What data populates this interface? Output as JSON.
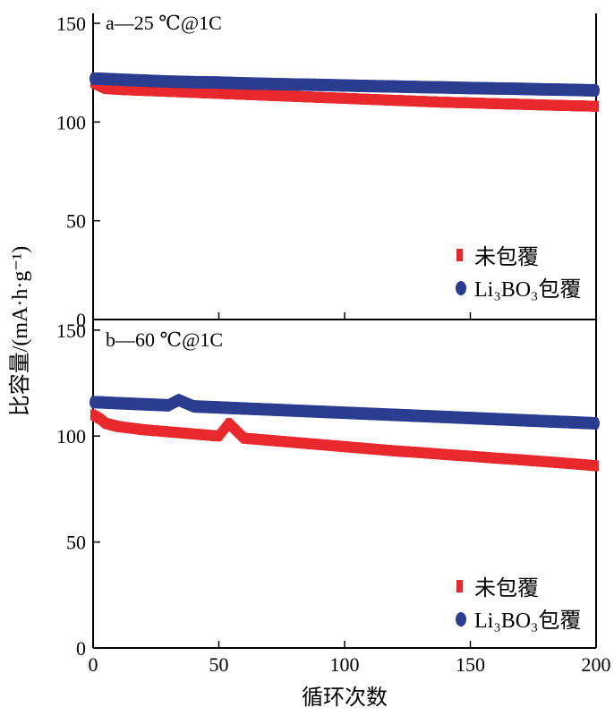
{
  "chart_data": {
    "type": "scatter",
    "xlabel": "循环次数",
    "ylabel": "比容量/(mA·h·g⁻¹)",
    "xlim": [
      0,
      200
    ],
    "ylim": [
      0,
      155
    ],
    "x_ticks": [
      "0",
      "50",
      "100",
      "150",
      "200"
    ],
    "y_ticks": [
      "0",
      "50",
      "100",
      "150"
    ],
    "panels": [
      {
        "label": "a—25 ℃@1C",
        "legend_position": "bottom-right",
        "series": [
          {
            "name": "未包覆",
            "marker": "square",
            "color": "#e8292c",
            "points": [
              [
                0,
                120
              ],
              [
                5,
                117
              ],
              [
                10,
                116.5
              ],
              [
                20,
                116
              ],
              [
                30,
                115.5
              ],
              [
                40,
                115
              ],
              [
                50,
                114.5
              ],
              [
                60,
                114
              ],
              [
                70,
                113.5
              ],
              [
                80,
                113
              ],
              [
                90,
                112.5
              ],
              [
                100,
                112
              ],
              [
                110,
                111.5
              ],
              [
                120,
                111
              ],
              [
                130,
                110.5
              ],
              [
                140,
                110
              ],
              [
                150,
                109.7
              ],
              [
                160,
                109.3
              ],
              [
                170,
                109
              ],
              [
                180,
                108.6
              ],
              [
                190,
                108.3
              ],
              [
                200,
                108
              ]
            ]
          },
          {
            "name": "Li₃BO₃包覆",
            "marker": "circle",
            "color": "#2b3d8f",
            "points": [
              [
                0,
                122
              ],
              [
                5,
                121.8
              ],
              [
                10,
                121.5
              ],
              [
                20,
                121
              ],
              [
                30,
                120.5
              ],
              [
                40,
                120.2
              ],
              [
                50,
                120
              ],
              [
                60,
                119.6
              ],
              [
                70,
                119.3
              ],
              [
                80,
                119
              ],
              [
                90,
                118.8
              ],
              [
                100,
                118.5
              ],
              [
                110,
                118.2
              ],
              [
                120,
                118
              ],
              [
                130,
                117.7
              ],
              [
                140,
                117.5
              ],
              [
                150,
                117.2
              ],
              [
                160,
                117
              ],
              [
                170,
                116.8
              ],
              [
                180,
                116.5
              ],
              [
                190,
                116.3
              ],
              [
                200,
                116
              ]
            ]
          }
        ]
      },
      {
        "label": "b—60 ℃@1C",
        "legend_position": "bottom-right",
        "series": [
          {
            "name": "未包覆",
            "marker": "square",
            "color": "#e8292c",
            "points": [
              [
                0,
                110
              ],
              [
                3,
                108
              ],
              [
                5,
                106
              ],
              [
                10,
                104.5
              ],
              [
                20,
                103
              ],
              [
                30,
                102
              ],
              [
                40,
                101
              ],
              [
                50,
                100
              ],
              [
                54,
                106
              ],
              [
                60,
                99
              ],
              [
                70,
                98
              ],
              [
                80,
                97
              ],
              [
                90,
                96
              ],
              [
                100,
                95
              ],
              [
                110,
                94
              ],
              [
                120,
                93
              ],
              [
                130,
                92.2
              ],
              [
                140,
                91.3
              ],
              [
                150,
                90.5
              ],
              [
                160,
                89.6
              ],
              [
                170,
                88.8
              ],
              [
                180,
                87.9
              ],
              [
                190,
                87
              ],
              [
                200,
                86
              ]
            ]
          },
          {
            "name": "Li₃BO₃包覆",
            "marker": "circle",
            "color": "#2b3d8f",
            "points": [
              [
                0,
                116
              ],
              [
                5,
                115.8
              ],
              [
                10,
                115.5
              ],
              [
                20,
                115
              ],
              [
                30,
                114.5
              ],
              [
                34,
                117
              ],
              [
                40,
                114
              ],
              [
                50,
                113.5
              ],
              [
                60,
                113
              ],
              [
                70,
                112.5
              ],
              [
                80,
                112
              ],
              [
                90,
                111.5
              ],
              [
                100,
                111
              ],
              [
                110,
                110.5
              ],
              [
                120,
                110
              ],
              [
                130,
                109.5
              ],
              [
                140,
                109
              ],
              [
                150,
                108.5
              ],
              [
                160,
                108
              ],
              [
                170,
                107.5
              ],
              [
                180,
                107
              ],
              [
                190,
                106.5
              ],
              [
                200,
                106
              ]
            ]
          }
        ]
      }
    ]
  }
}
